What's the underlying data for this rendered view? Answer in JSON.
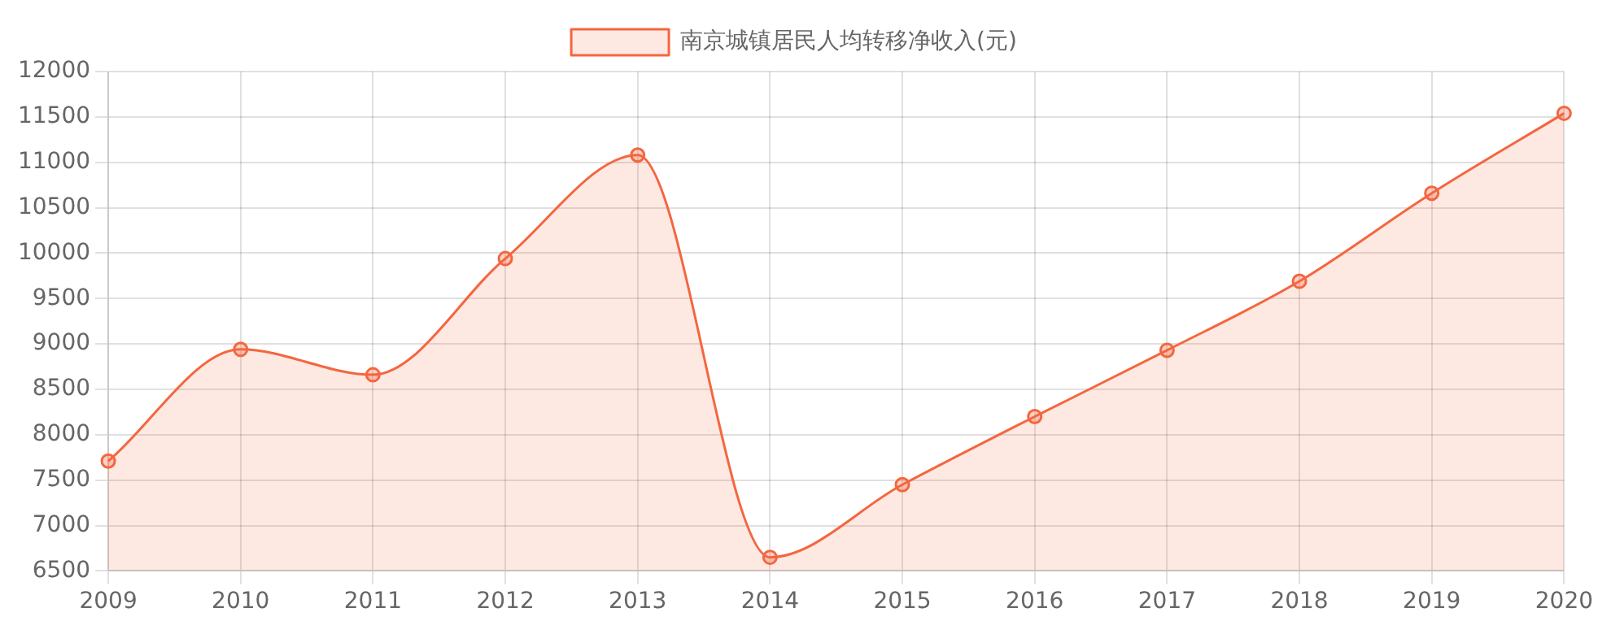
{
  "chart_data": {
    "type": "area",
    "categories": [
      "2009",
      "2010",
      "2011",
      "2012",
      "2013",
      "2014",
      "2015",
      "2016",
      "2017",
      "2018",
      "2019",
      "2020"
    ],
    "series": [
      {
        "name": "南京城镇居民人均转移净收入(元)",
        "color": "#f4663f",
        "values": [
          7710,
          8940,
          8660,
          9940,
          11080,
          6650,
          7450,
          8200,
          8930,
          9690,
          10660,
          11540
        ]
      }
    ],
    "ylim": [
      6500,
      12000
    ],
    "yticks": [
      6500,
      7000,
      7500,
      8000,
      8500,
      9000,
      9500,
      10000,
      10500,
      11000,
      11500,
      12000
    ],
    "grid": true,
    "legend": "top",
    "marker": "circle",
    "line_style": "solid"
  }
}
